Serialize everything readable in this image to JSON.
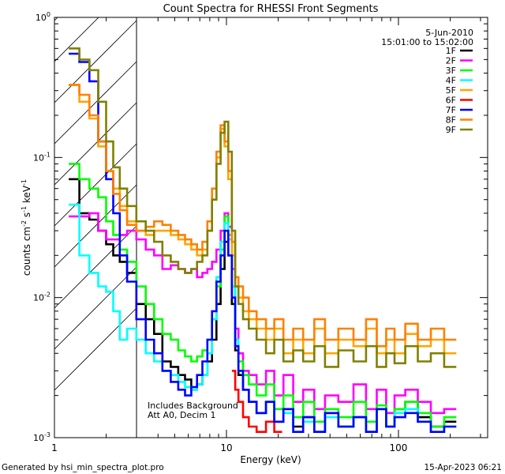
{
  "chart_data": {
    "type": "line",
    "title": "Count Spectra for RHESSI Front Segments",
    "xlabel": "Energy (keV)",
    "ylabel_parts": [
      "counts cm",
      "-2",
      " s",
      "-1",
      " keV",
      "-1"
    ],
    "xscale": "log",
    "yscale": "log",
    "xlim": [
      1,
      330
    ],
    "ylim": [
      0.001,
      1
    ],
    "x_ticks": [
      {
        "value": 1,
        "label": "1"
      },
      {
        "value": 10,
        "label": "10"
      },
      {
        "value": 100,
        "label": "100"
      }
    ],
    "y_ticks": [
      {
        "value": 1,
        "mantissa": "10",
        "exp": "0"
      },
      {
        "value": 0.1,
        "mantissa": "10",
        "exp": "-1"
      },
      {
        "value": 0.01,
        "mantissa": "10",
        "exp": "-2"
      },
      {
        "value": 0.001,
        "mantissa": "10",
        "exp": "-3"
      }
    ],
    "shaded_region": {
      "x_from": 1,
      "x_to": 3,
      "pattern": "diagonal-hatch"
    },
    "annotations": [
      "Includes Background",
      "Att A0, Decim 1"
    ],
    "legend_header": [
      "5-Jun-2010",
      "15:01:00 to 15:02:00"
    ],
    "legend_position": "top-right",
    "series": [
      {
        "name": "1F",
        "color": "#000000",
        "x": [
          1.3,
          1.5,
          1.7,
          1.9,
          2.1,
          2.3,
          2.5,
          2.8,
          3.2,
          3.6,
          4.0,
          4.5,
          5.0,
          5.5,
          6.0,
          6.5,
          7.0,
          7.5,
          8.0,
          8.5,
          9.0,
          9.5,
          10.0,
          10.5,
          11.0,
          11.5,
          12.0,
          13.0,
          14.0,
          16.0,
          18.0,
          20.0,
          23.0,
          26.0,
          30.0,
          35.0,
          40.0,
          50.0,
          60.0,
          70.0,
          80.0,
          90.0,
          100.0,
          120.0,
          140.0,
          170.0,
          200.0
        ],
        "y": [
          0.07,
          0.04,
          0.036,
          0.03,
          0.024,
          0.02,
          0.018,
          0.015,
          0.009,
          0.007,
          0.0055,
          0.0035,
          0.0032,
          0.0028,
          0.0026,
          0.0022,
          0.0024,
          0.0028,
          0.0035,
          0.005,
          0.009,
          0.016,
          0.025,
          0.02,
          0.009,
          0.0042,
          0.0028,
          0.0022,
          0.0018,
          0.0015,
          0.0018,
          0.0013,
          0.0016,
          0.0012,
          0.0014,
          0.0011,
          0.0015,
          0.0012,
          0.0014,
          0.0011,
          0.0016,
          0.0012,
          0.0016,
          0.0018,
          0.0014,
          0.0012,
          0.0013
        ]
      },
      {
        "name": "2F",
        "color": "#ff00ff",
        "x": [
          1.3,
          1.5,
          1.7,
          1.9,
          2.1,
          2.3,
          2.5,
          2.8,
          3.2,
          3.6,
          4.0,
          4.5,
          5.0,
          5.5,
          6.0,
          6.5,
          7.0,
          7.5,
          8.0,
          8.5,
          9.0,
          9.5,
          10.0,
          10.5,
          11.0,
          11.5,
          12.0,
          13.0,
          14.0,
          16.0,
          18.0,
          20.0,
          23.0,
          26.0,
          30.0,
          35.0,
          40.0,
          50.0,
          60.0,
          70.0,
          80.0,
          90.0,
          100.0,
          120.0,
          140.0,
          170.0,
          200.0
        ],
        "y": [
          0.038,
          0.038,
          0.04,
          0.03,
          0.026,
          0.026,
          0.028,
          0.03,
          0.026,
          0.022,
          0.02,
          0.016,
          0.017,
          0.016,
          0.015,
          0.016,
          0.014,
          0.015,
          0.016,
          0.018,
          0.022,
          0.03,
          0.04,
          0.032,
          0.016,
          0.006,
          0.004,
          0.003,
          0.0028,
          0.0024,
          0.003,
          0.002,
          0.0028,
          0.0018,
          0.0022,
          0.0016,
          0.002,
          0.0018,
          0.0024,
          0.0016,
          0.0022,
          0.0015,
          0.002,
          0.0022,
          0.0018,
          0.0015,
          0.0016
        ]
      },
      {
        "name": "3F",
        "color": "#00ff00",
        "x": [
          1.3,
          1.5,
          1.7,
          1.9,
          2.1,
          2.3,
          2.5,
          2.8,
          3.2,
          3.6,
          4.0,
          4.5,
          5.0,
          5.5,
          6.0,
          6.5,
          7.0,
          7.5,
          8.0,
          8.5,
          9.0,
          9.5,
          10.0,
          10.5,
          11.0,
          11.5,
          12.0,
          13.0,
          14.0,
          16.0,
          18.0,
          20.0,
          23.0,
          26.0,
          30.0,
          35.0,
          40.0,
          50.0,
          60.0,
          70.0,
          80.0,
          90.0,
          100.0,
          120.0,
          140.0,
          170.0,
          200.0
        ],
        "y": [
          0.09,
          0.07,
          0.06,
          0.052,
          0.035,
          0.028,
          0.022,
          0.018,
          0.012,
          0.009,
          0.007,
          0.0055,
          0.005,
          0.0042,
          0.0038,
          0.0035,
          0.0038,
          0.0042,
          0.005,
          0.007,
          0.012,
          0.022,
          0.038,
          0.028,
          0.012,
          0.005,
          0.0035,
          0.0028,
          0.0024,
          0.002,
          0.0024,
          0.0016,
          0.002,
          0.0014,
          0.0018,
          0.0013,
          0.0016,
          0.0014,
          0.0018,
          0.0013,
          0.0017,
          0.0012,
          0.0016,
          0.0018,
          0.0015,
          0.0012,
          0.0014
        ]
      },
      {
        "name": "4F",
        "color": "#00ffff",
        "x": [
          1.3,
          1.5,
          1.7,
          1.9,
          2.1,
          2.3,
          2.5,
          2.8,
          3.2,
          3.6,
          4.0,
          4.5,
          5.0,
          5.5,
          6.0,
          6.5,
          7.0,
          7.5,
          8.0,
          8.5,
          9.0,
          9.5,
          10.0,
          10.5,
          11.0,
          11.5,
          12.0,
          13.0,
          14.0,
          16.0,
          18.0,
          20.0,
          23.0,
          26.0,
          30.0,
          35.0,
          40.0,
          50.0,
          60.0,
          70.0,
          80.0,
          90.0,
          100.0,
          120.0,
          140.0,
          170.0,
          200.0
        ],
        "y": [
          0.046,
          0.02,
          0.015,
          0.012,
          0.011,
          0.008,
          0.005,
          0.006,
          0.005,
          0.004,
          0.0035,
          0.003,
          0.0028,
          0.0025,
          0.0023,
          0.0022,
          0.0024,
          0.0028,
          0.004,
          0.007,
          0.014,
          0.025,
          0.034,
          0.026,
          0.012,
          0.005,
          0.003,
          0.0022,
          0.0018,
          0.0015,
          0.0018,
          0.0013,
          0.0015,
          0.0011,
          0.0013,
          0.0011,
          0.0014,
          0.0012,
          0.0014,
          0.0011,
          0.0016,
          0.0012,
          0.0015,
          0.0016,
          0.0013,
          0.0011,
          0.0012
        ]
      },
      {
        "name": "5F",
        "color": "#ffa500",
        "x": [
          1.3,
          1.5,
          1.7,
          1.9,
          2.1,
          2.3,
          2.5,
          2.8,
          3.2,
          3.6,
          4.0,
          4.5,
          5.0,
          5.5,
          6.0,
          6.5,
          7.0,
          7.5,
          8.0,
          8.5,
          9.0,
          9.5,
          10.0,
          10.5,
          11.0,
          11.5,
          12.0,
          13.0,
          14.0,
          16.0,
          18.0,
          20.0,
          23.0,
          26.0,
          30.0,
          35.0,
          40.0,
          50.0,
          60.0,
          70.0,
          80.0,
          90.0,
          100.0,
          120.0,
          140.0,
          170.0,
          200.0
        ],
        "y": [
          0.33,
          0.25,
          0.19,
          0.12,
          0.08,
          0.06,
          0.045,
          0.035,
          0.03,
          0.028,
          0.03,
          0.03,
          0.028,
          0.026,
          0.024,
          0.022,
          0.02,
          0.022,
          0.03,
          0.05,
          0.1,
          0.16,
          0.12,
          0.07,
          0.02,
          0.012,
          0.01,
          0.008,
          0.007,
          0.006,
          0.005,
          0.006,
          0.004,
          0.005,
          0.004,
          0.006,
          0.004,
          0.005,
          0.0045,
          0.006,
          0.004,
          0.005,
          0.004,
          0.0055,
          0.0045,
          0.005,
          0.004
        ]
      },
      {
        "name": "6F",
        "color": "#ff0000",
        "x": [
          11.0,
          11.5,
          12.0,
          13.0,
          14.0,
          16.0,
          18.0,
          20.0
        ],
        "y": [
          0.003,
          0.0022,
          0.0018,
          0.0014,
          0.0012,
          0.0011,
          0.0013,
          0.0011
        ]
      },
      {
        "name": "7F",
        "color": "#0000ff",
        "x": [
          1.3,
          1.5,
          1.7,
          1.9,
          2.1,
          2.3,
          2.5,
          2.8,
          3.2,
          3.6,
          4.0,
          4.5,
          5.0,
          5.5,
          6.0,
          6.5,
          7.0,
          7.5,
          8.0,
          8.5,
          9.0,
          9.5,
          10.0,
          10.5,
          11.0,
          11.5,
          12.0,
          13.0,
          14.0,
          16.0,
          18.0,
          20.0,
          23.0,
          26.0,
          30.0,
          35.0,
          40.0,
          50.0,
          60.0,
          70.0,
          80.0,
          90.0,
          100.0,
          120.0,
          140.0,
          170.0,
          200.0
        ],
        "y": [
          0.55,
          0.48,
          0.35,
          0.13,
          0.07,
          0.04,
          0.02,
          0.013,
          0.007,
          0.005,
          0.004,
          0.003,
          0.0025,
          0.0022,
          0.002,
          0.0023,
          0.0028,
          0.0035,
          0.005,
          0.008,
          0.013,
          0.02,
          0.03,
          0.02,
          0.01,
          0.0045,
          0.003,
          0.0022,
          0.0018,
          0.0015,
          0.0018,
          0.0013,
          0.0016,
          0.0011,
          0.0014,
          0.0011,
          0.0015,
          0.0012,
          0.0014,
          0.0011,
          0.0016,
          0.0012,
          0.0014,
          0.0015,
          0.0013,
          0.0011,
          0.0012
        ]
      },
      {
        "name": "8F",
        "color": "#ff8000",
        "x": [
          1.3,
          1.5,
          1.7,
          1.9,
          2.1,
          2.3,
          2.5,
          2.8,
          3.2,
          3.6,
          4.0,
          4.5,
          5.0,
          5.5,
          6.0,
          6.5,
          7.0,
          7.5,
          8.0,
          8.5,
          9.0,
          9.5,
          10.0,
          10.5,
          11.0,
          11.5,
          12.0,
          13.0,
          14.0,
          16.0,
          18.0,
          20.0,
          23.0,
          26.0,
          30.0,
          35.0,
          40.0,
          50.0,
          60.0,
          70.0,
          80.0,
          90.0,
          100.0,
          120.0,
          140.0,
          170.0,
          200.0
        ],
        "y": [
          0.33,
          0.28,
          0.2,
          0.13,
          0.08,
          0.055,
          0.042,
          0.033,
          0.03,
          0.032,
          0.035,
          0.033,
          0.03,
          0.028,
          0.026,
          0.024,
          0.022,
          0.025,
          0.035,
          0.06,
          0.11,
          0.17,
          0.13,
          0.08,
          0.025,
          0.014,
          0.012,
          0.01,
          0.008,
          0.007,
          0.006,
          0.007,
          0.005,
          0.006,
          0.005,
          0.007,
          0.005,
          0.006,
          0.005,
          0.007,
          0.0045,
          0.006,
          0.005,
          0.0065,
          0.005,
          0.006,
          0.005
        ]
      },
      {
        "name": "9F",
        "color": "#808000",
        "x": [
          1.3,
          1.5,
          1.7,
          1.9,
          2.1,
          2.3,
          2.5,
          2.8,
          3.2,
          3.6,
          4.0,
          4.5,
          5.0,
          5.5,
          6.0,
          6.5,
          7.0,
          7.5,
          8.0,
          8.5,
          9.0,
          9.5,
          10.0,
          10.5,
          11.0,
          11.5,
          12.0,
          13.0,
          14.0,
          16.0,
          18.0,
          20.0,
          23.0,
          26.0,
          30.0,
          35.0,
          40.0,
          50.0,
          60.0,
          70.0,
          80.0,
          90.0,
          100.0,
          120.0,
          140.0,
          170.0,
          200.0
        ],
        "y": [
          0.6,
          0.5,
          0.42,
          0.25,
          0.13,
          0.085,
          0.06,
          0.045,
          0.035,
          0.03,
          0.025,
          0.02,
          0.018,
          0.016,
          0.015,
          0.016,
          0.018,
          0.02,
          0.03,
          0.05,
          0.09,
          0.15,
          0.18,
          0.11,
          0.03,
          0.012,
          0.009,
          0.007,
          0.006,
          0.005,
          0.004,
          0.005,
          0.0035,
          0.0042,
          0.0035,
          0.0045,
          0.0032,
          0.0042,
          0.0035,
          0.0045,
          0.0032,
          0.004,
          0.0034,
          0.0045,
          0.0035,
          0.004,
          0.0032
        ]
      }
    ]
  },
  "footer": {
    "left": "Generated by hsi_min_spectra_plot.pro",
    "right": "15-Apr-2023 06:21"
  }
}
